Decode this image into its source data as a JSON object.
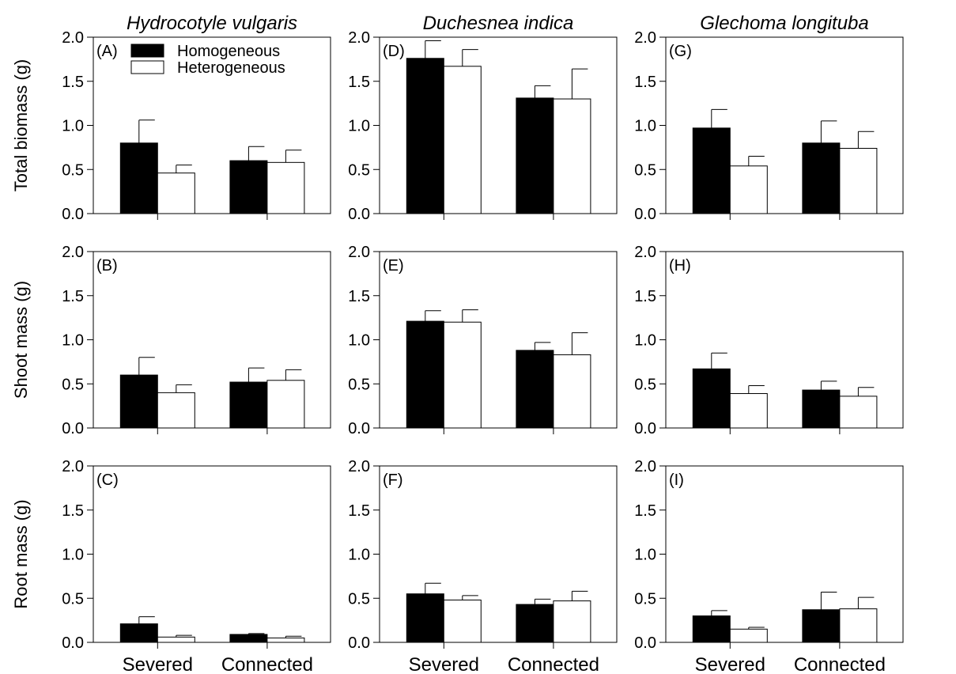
{
  "legend": {
    "series": [
      {
        "name": "Homogeneous",
        "fill": "#000000"
      },
      {
        "name": "Heterogeneous",
        "fill": "#ffffff"
      }
    ]
  },
  "chart_data": {
    "type": "bar",
    "categories": [
      "Severed",
      "Connected"
    ],
    "y_ticks": [
      "0.0",
      "0.5",
      "1.0",
      "1.5",
      "2.0"
    ],
    "ylim": [
      0,
      2
    ],
    "column_titles": [
      "Hydrocotyle vulgaris",
      "Duchesnea indica",
      "Glechoma longituba"
    ],
    "row_ylabels": [
      "Total biomass (g)",
      "Shoot mass (g)",
      "Root mass (g)"
    ],
    "series_names": [
      "Homogeneous",
      "Heterogeneous"
    ],
    "panels": [
      {
        "label": "(A)",
        "row": 0,
        "col": 0,
        "series": [
          {
            "name": "Homogeneous",
            "values": [
              0.8,
              0.6
            ],
            "errors": [
              0.26,
              0.16
            ]
          },
          {
            "name": "Heterogeneous",
            "values": [
              0.46,
              0.58
            ],
            "errors": [
              0.09,
              0.14
            ]
          }
        ]
      },
      {
        "label": "(B)",
        "row": 1,
        "col": 0,
        "series": [
          {
            "name": "Homogeneous",
            "values": [
              0.6,
              0.52
            ],
            "errors": [
              0.2,
              0.16
            ]
          },
          {
            "name": "Heterogeneous",
            "values": [
              0.4,
              0.54
            ],
            "errors": [
              0.09,
              0.12
            ]
          }
        ]
      },
      {
        "label": "(C)",
        "row": 2,
        "col": 0,
        "series": [
          {
            "name": "Homogeneous",
            "values": [
              0.21,
              0.09
            ],
            "errors": [
              0.08,
              0.01
            ]
          },
          {
            "name": "Heterogeneous",
            "values": [
              0.06,
              0.05
            ],
            "errors": [
              0.02,
              0.02
            ]
          }
        ]
      },
      {
        "label": "(D)",
        "row": 0,
        "col": 1,
        "series": [
          {
            "name": "Homogeneous",
            "values": [
              1.76,
              1.31
            ],
            "errors": [
              0.2,
              0.14
            ]
          },
          {
            "name": "Heterogeneous",
            "values": [
              1.67,
              1.3
            ],
            "errors": [
              0.19,
              0.34
            ]
          }
        ]
      },
      {
        "label": "(E)",
        "row": 1,
        "col": 1,
        "series": [
          {
            "name": "Homogeneous",
            "values": [
              1.21,
              0.88
            ],
            "errors": [
              0.12,
              0.09
            ]
          },
          {
            "name": "Heterogeneous",
            "values": [
              1.2,
              0.83
            ],
            "errors": [
              0.14,
              0.25
            ]
          }
        ]
      },
      {
        "label": "(F)",
        "row": 2,
        "col": 1,
        "series": [
          {
            "name": "Homogeneous",
            "values": [
              0.55,
              0.43
            ],
            "errors": [
              0.12,
              0.06
            ]
          },
          {
            "name": "Heterogeneous",
            "values": [
              0.48,
              0.47
            ],
            "errors": [
              0.05,
              0.11
            ]
          }
        ]
      },
      {
        "label": "(G)",
        "row": 0,
        "col": 2,
        "series": [
          {
            "name": "Homogeneous",
            "values": [
              0.97,
              0.8
            ],
            "errors": [
              0.21,
              0.25
            ]
          },
          {
            "name": "Heterogeneous",
            "values": [
              0.54,
              0.74
            ],
            "errors": [
              0.11,
              0.19
            ]
          }
        ]
      },
      {
        "label": "(H)",
        "row": 1,
        "col": 2,
        "series": [
          {
            "name": "Homogeneous",
            "values": [
              0.67,
              0.43
            ],
            "errors": [
              0.18,
              0.1
            ]
          },
          {
            "name": "Heterogeneous",
            "values": [
              0.39,
              0.36
            ],
            "errors": [
              0.09,
              0.1
            ]
          }
        ]
      },
      {
        "label": "(I)",
        "row": 2,
        "col": 2,
        "series": [
          {
            "name": "Homogeneous",
            "values": [
              0.3,
              0.37
            ],
            "errors": [
              0.06,
              0.2
            ]
          },
          {
            "name": "Heterogeneous",
            "values": [
              0.15,
              0.38
            ],
            "errors": [
              0.02,
              0.13
            ]
          }
        ]
      }
    ]
  }
}
